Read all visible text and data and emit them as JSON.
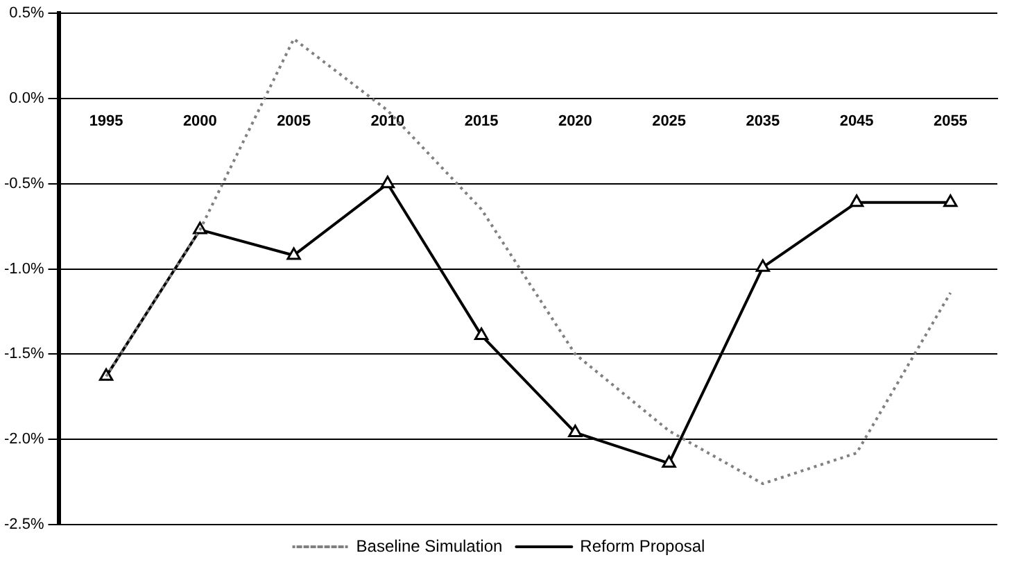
{
  "chart_data": {
    "type": "line",
    "categories": [
      "1995",
      "2000",
      "2005",
      "2010",
      "2015",
      "2020",
      "2025",
      "2035",
      "2045",
      "2055"
    ],
    "series": [
      {
        "name": "Baseline Simulation",
        "color": "#808080",
        "line_style": "dotted",
        "marker": "none",
        "values": [
          -1.63,
          -0.77,
          0.35,
          -0.07,
          -0.65,
          -1.5,
          -1.95,
          -2.26,
          -2.08,
          -1.14
        ]
      },
      {
        "name": "Reform Proposal",
        "color": "#000000",
        "line_style": "solid",
        "marker": "triangle",
        "values": [
          -1.63,
          -0.77,
          -0.92,
          -0.5,
          -1.39,
          -1.96,
          -2.14,
          -0.99,
          -0.61,
          -0.61
        ]
      }
    ],
    "ylim": [
      -2.5,
      0.5
    ],
    "yticks": [
      {
        "value": 0.5,
        "label": "0.5%"
      },
      {
        "value": 0,
        "label": "0.0%"
      },
      {
        "value": -0.5,
        "label": "-0.5%"
      },
      {
        "value": -1,
        "label": "-1.0%"
      },
      {
        "value": -1.5,
        "label": "-1.5%"
      },
      {
        "value": -2,
        "label": "-2.0%"
      },
      {
        "value": -2.5,
        "label": "-2.5%"
      }
    ],
    "grid": "y",
    "legend": "bottom"
  }
}
